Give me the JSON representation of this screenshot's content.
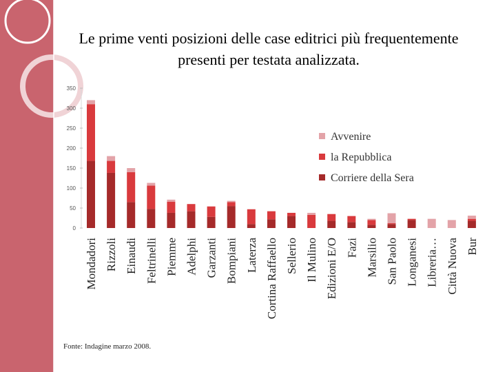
{
  "title": "Le prime venti posizioni delle case editrici più frequentemente presenti per testata analizzata.",
  "source": "Fonte: Indagine marzo 2008.",
  "colors": {
    "Corriere della Sera": "#a52a2a",
    "la Repubblica": "#d93a3d",
    "Avvenire": "#e3a3a8",
    "background_panel": "#c9646e"
  },
  "chart_data": {
    "type": "bar",
    "stacked": true,
    "title": "",
    "xlabel": "",
    "ylabel": "",
    "ylim": [
      0,
      350
    ],
    "yticks": [
      0,
      50,
      100,
      150,
      200,
      250,
      300,
      350
    ],
    "grid": false,
    "legend_position": "right",
    "categories": [
      "Mondadori",
      "Rizzoli",
      "Einaudi",
      "Feltrinelli",
      "Piemme",
      "Adelphi",
      "Garzanti",
      "Bompiani",
      "Laterza",
      "Cortina Raffaello",
      "Sellerio",
      "Il Mulino",
      "Edizioni E/O",
      "Fazi",
      "Marsilio",
      "San Paolo",
      "Longanesi",
      "Libreria…",
      "Città Nuova",
      "Bur"
    ],
    "series": [
      {
        "name": "Corriere della Sera",
        "values": [
          168,
          138,
          65,
          48,
          38,
          42,
          28,
          55,
          10,
          22,
          30,
          0,
          18,
          15,
          8,
          10,
          20,
          0,
          0,
          18
        ]
      },
      {
        "name": "la Repubblica",
        "values": [
          142,
          30,
          75,
          58,
          28,
          18,
          26,
          10,
          37,
          20,
          8,
          33,
          17,
          15,
          12,
          2,
          3,
          0,
          0,
          5
        ]
      },
      {
        "name": "Avvenire",
        "values": [
          10,
          12,
          10,
          7,
          5,
          0,
          0,
          3,
          0,
          0,
          0,
          5,
          0,
          0,
          3,
          25,
          0,
          23,
          20,
          8
        ]
      }
    ],
    "legend": [
      "Avvenire",
      "la Repubblica",
      "Corriere della Sera"
    ]
  }
}
